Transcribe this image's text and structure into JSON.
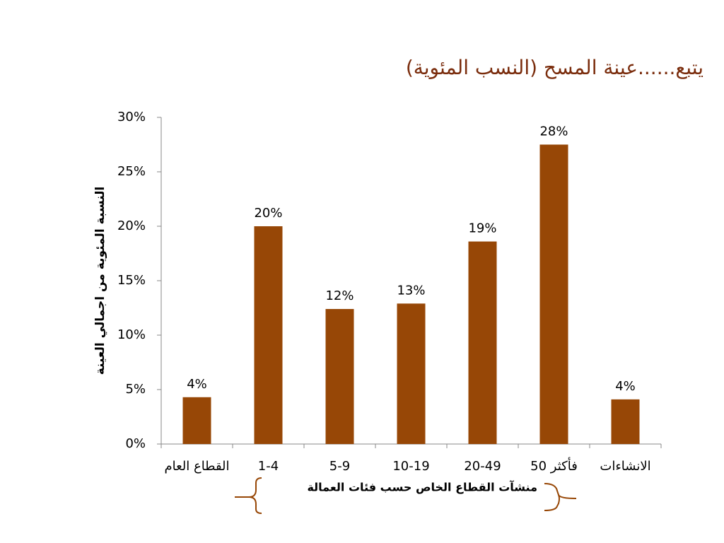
{
  "chart_data": {
    "type": "bar",
    "title": "يتبع......عينة المسح (النسب المئوية)",
    "y_label": "النسبة المئوية من اجمالي العينة",
    "x_group_label": "منشآت القطاع الخاص حسب فئات العمالة",
    "categories": [
      "القطاع العام",
      "1-4",
      "5-9",
      "10-19",
      "20-49",
      "50 فأكثر",
      "الانشاءات"
    ],
    "values": [
      4.3,
      20,
      12.4,
      12.9,
      18.6,
      27.5,
      4.1
    ],
    "value_labels": [
      "4%",
      "20%",
      "12%",
      "13%",
      "19%",
      "28%",
      "4%"
    ],
    "color": "#974706",
    "ylim": [
      0,
      30
    ],
    "yticks": [
      {
        "value": 0,
        "label": "0%"
      },
      {
        "value": 5,
        "label": "5%"
      },
      {
        "value": 10,
        "label": "10%"
      },
      {
        "value": 15,
        "label": "15%"
      },
      {
        "value": 20,
        "label": "20%"
      },
      {
        "value": 25,
        "label": "25%"
      },
      {
        "value": 30,
        "label": "30%"
      }
    ],
    "grid": false
  }
}
